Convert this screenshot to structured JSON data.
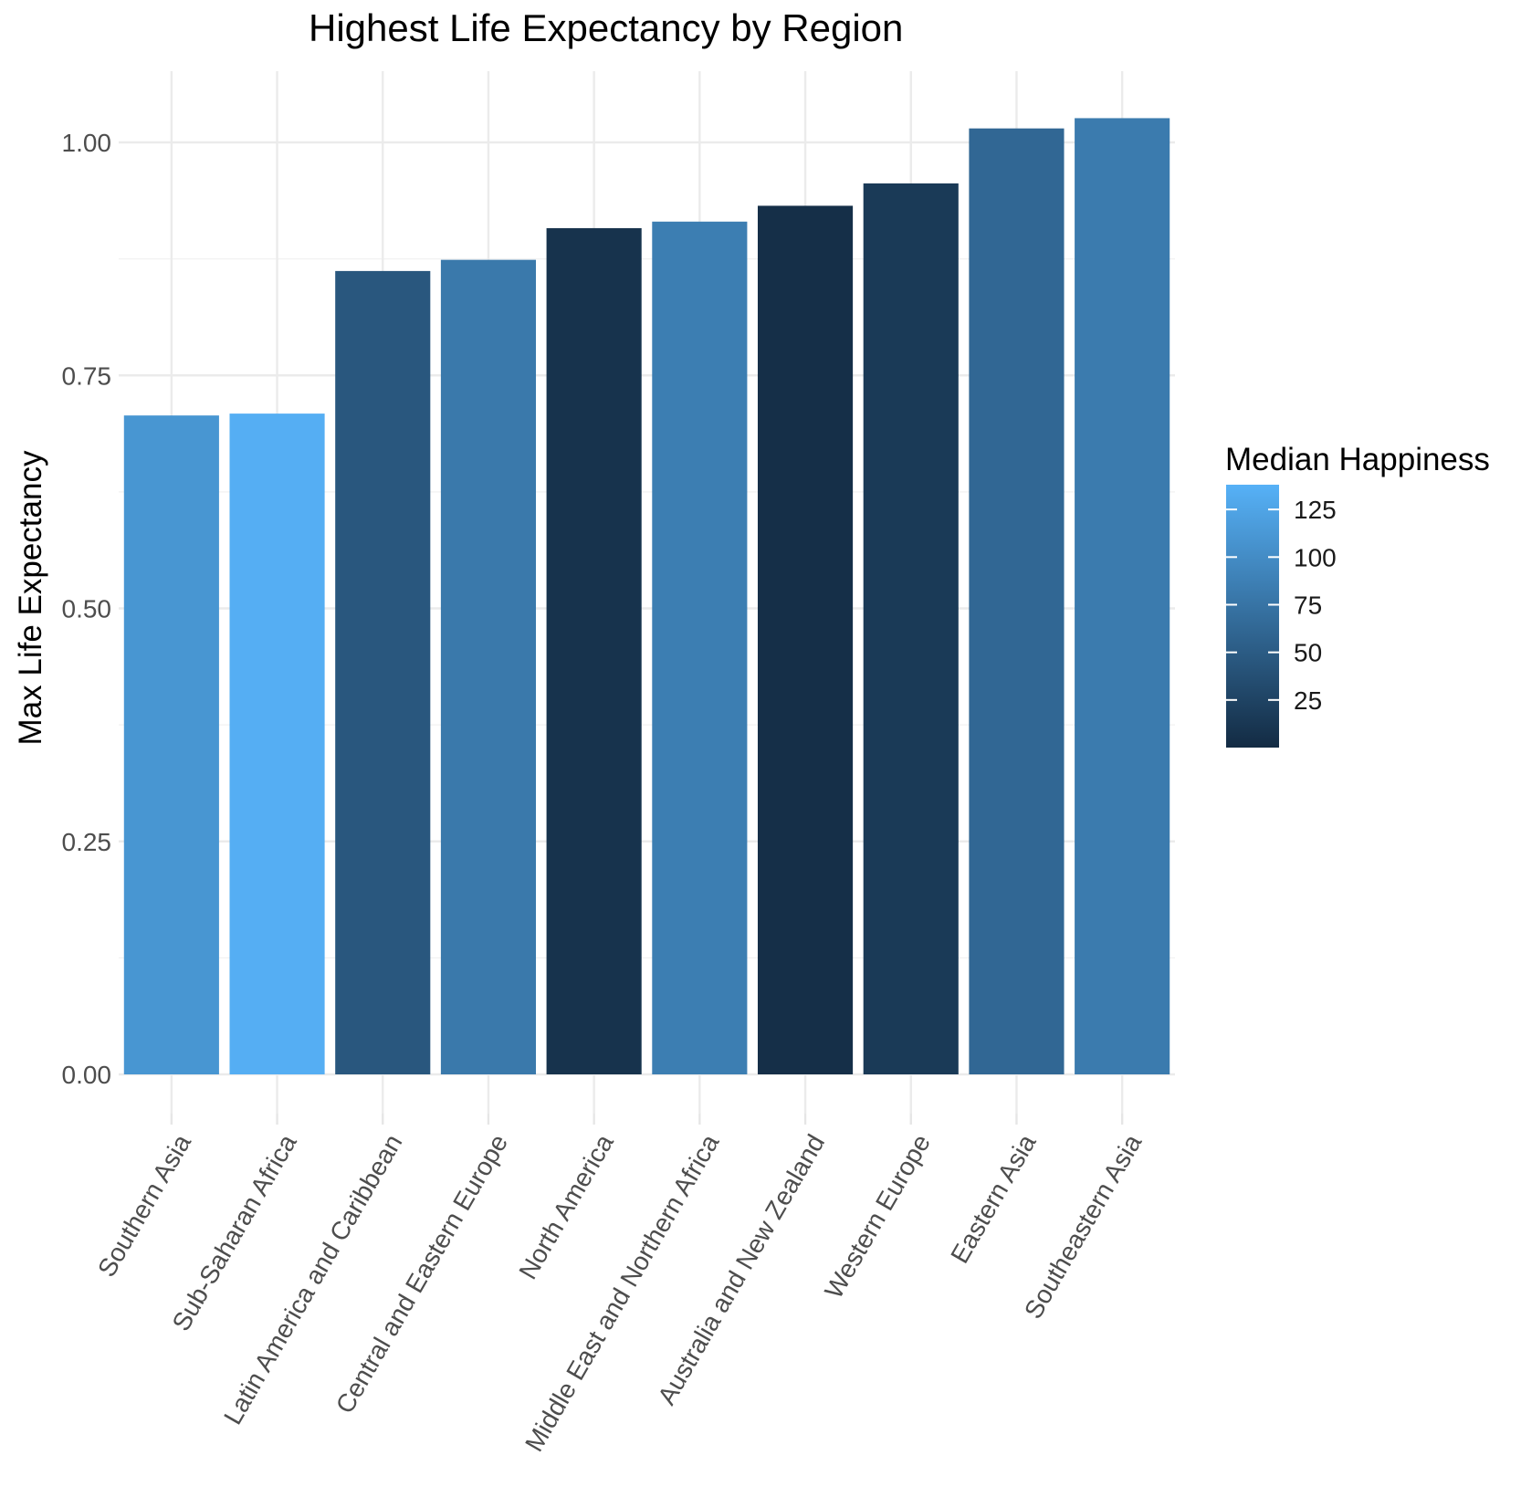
{
  "chart_data": {
    "type": "bar",
    "title": "Highest Life Expectancy by Region",
    "xlabel": "",
    "ylabel": "Max Life Expectancy",
    "categories": [
      "Southern Asia",
      "Sub-Saharan Africa",
      "Latin America and Caribbean",
      "Central and Eastern Europe",
      "North America",
      "Middle East and Northern Africa",
      "Australia and New Zealand",
      "Western Europe",
      "Eastern Asia",
      "Southeastern Asia"
    ],
    "values": [
      0.707,
      0.709,
      0.862,
      0.874,
      0.908,
      0.915,
      0.932,
      0.956,
      1.015,
      1.026
    ],
    "fill_values": [
      110,
      135,
      45,
      80,
      8,
      85,
      4,
      15,
      62,
      82
    ],
    "ylim": [
      0,
      1.07
    ],
    "y_ticks": [
      {
        "value": 0,
        "label": "0.00"
      },
      {
        "value": 0.25,
        "label": "0.25"
      },
      {
        "value": 0.5,
        "label": "0.50"
      },
      {
        "value": 0.75,
        "label": "0.75"
      },
      {
        "value": 1.0,
        "label": "1.00"
      }
    ],
    "grid": true,
    "legend": {
      "title": "Median Happiness",
      "position": "right",
      "range": [
        0,
        138
      ],
      "ticks": [
        {
          "value": 25,
          "label": "25"
        },
        {
          "value": 50,
          "label": "50"
        },
        {
          "value": 75,
          "label": "75"
        },
        {
          "value": 100,
          "label": "100"
        },
        {
          "value": 125,
          "label": "125"
        }
      ],
      "low_color": "#132B43",
      "high_color": "#56B1F7"
    }
  }
}
